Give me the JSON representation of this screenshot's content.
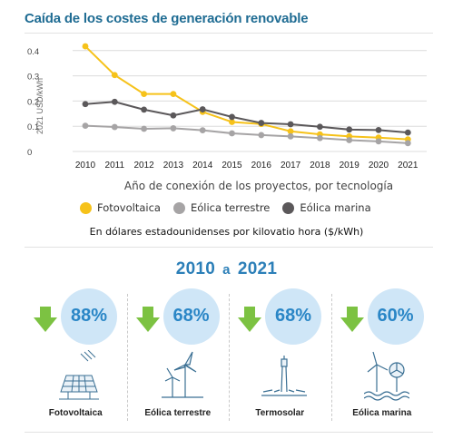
{
  "title": "Caída de los costes de generación renovable",
  "chart_data": {
    "type": "line",
    "title": "Caída de los costes de generación renovable",
    "xlabel": "Año de conexión de los proyectos, por tecnología",
    "ylabel": "2021 USD/kWh",
    "ylim": [
      0,
      0.45
    ],
    "yticks": [
      "0",
      "0.1",
      "0.2",
      "0.3",
      "0.4"
    ],
    "x": [
      "2010",
      "2011",
      "2012",
      "2013",
      "2014",
      "2015",
      "2016",
      "2017",
      "2018",
      "2019",
      "2020",
      "2021"
    ],
    "grid": "horizontal",
    "legend_position": "bottom",
    "series": [
      {
        "name": "Fotovoltaica",
        "color": "#f6c21a",
        "values": [
          0.417,
          0.303,
          0.228,
          0.228,
          0.157,
          0.117,
          0.109,
          0.08,
          0.068,
          0.06,
          0.055,
          0.048
        ]
      },
      {
        "name": "Eólica terrestre",
        "color": "#a6a4a5",
        "values": [
          0.102,
          0.097,
          0.09,
          0.092,
          0.084,
          0.072,
          0.065,
          0.06,
          0.053,
          0.045,
          0.04,
          0.033
        ]
      },
      {
        "name": "Eólica marina",
        "color": "#5b585a",
        "values": [
          0.188,
          0.197,
          0.166,
          0.143,
          0.167,
          0.137,
          0.113,
          0.108,
          0.098,
          0.087,
          0.085,
          0.075
        ]
      }
    ]
  },
  "legend": {
    "items": [
      {
        "label": "Fotovoltaica",
        "color": "#f6c21a"
      },
      {
        "label": "Eólica terrestre",
        "color": "#a6a4a5"
      },
      {
        "label": "Eólica marina",
        "color": "#5b585a"
      }
    ]
  },
  "note": "En dólares estadounidenses por kilovatio hora ($/kWh)",
  "period": {
    "from": "2010",
    "a": "a",
    "to": "2021"
  },
  "reductions": [
    {
      "percent": "88%",
      "label": "Fotovoltaica",
      "icon": "solar-panel-icon"
    },
    {
      "percent": "68%",
      "label": "Eólica terrestre",
      "icon": "wind-turbine-icon"
    },
    {
      "percent": "68%",
      "label": "Termosolar",
      "icon": "solar-tower-icon"
    },
    {
      "percent": "60%",
      "label": "Eólica marina",
      "icon": "offshore-wind-icon"
    }
  ],
  "colors": {
    "accent": "#2a86c6",
    "arrow": "#7cc242",
    "bubble": "#cfe6f7"
  }
}
